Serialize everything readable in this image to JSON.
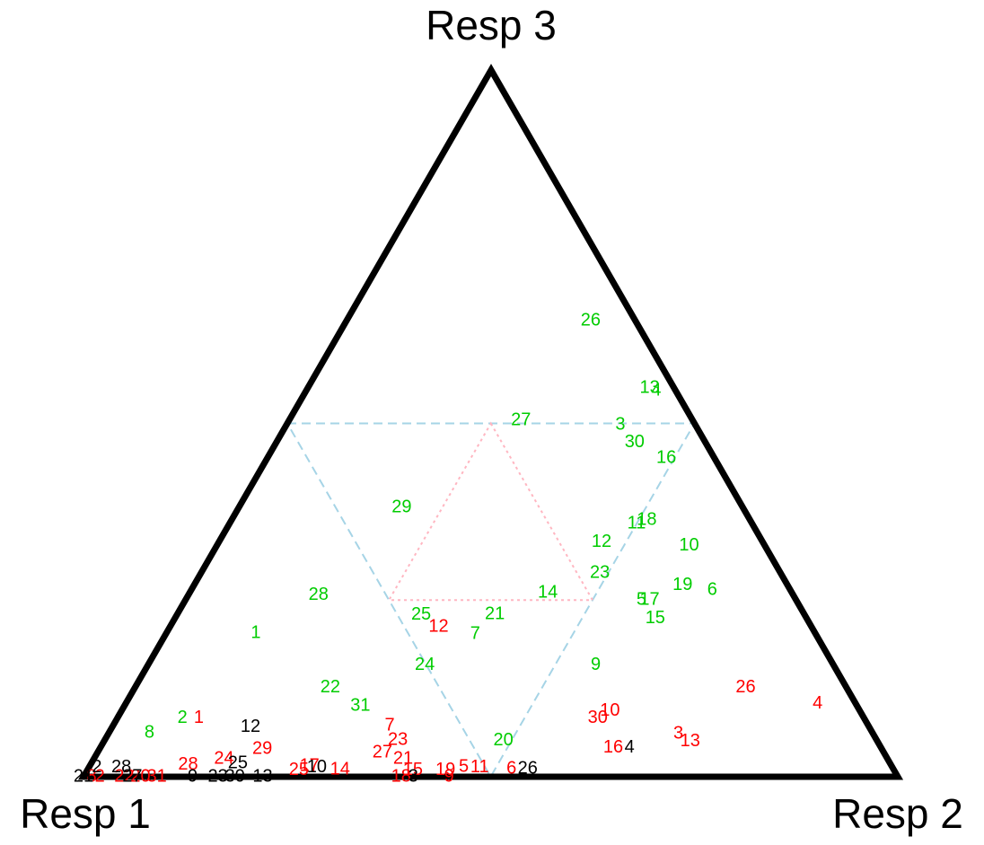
{
  "chart_data": {
    "type": "ternary",
    "axis_labels": [
      "Resp 1",
      "Resp 2",
      "Resp 3"
    ],
    "series": [
      {
        "color": "#00cc00",
        "labels": [
          26,
          13,
          4,
          27,
          3,
          30,
          16,
          29,
          11,
          18,
          12,
          10,
          23,
          19,
          6,
          14,
          5,
          17,
          28,
          15,
          25,
          21,
          1,
          7,
          24,
          9,
          22,
          31,
          2,
          8,
          20
        ],
        "resp2": [
          0.3,
          0.42,
          0.43,
          0.285,
          0.41,
          0.44,
          0.49,
          0.2,
          0.5,
          0.51,
          0.47,
          0.58,
          0.49,
          0.6,
          0.64,
          0.44,
          0.56,
          0.57,
          0.16,
          0.59,
          0.3,
          0.39,
          0.11,
          0.38,
          0.34,
          0.55,
          0.24,
          0.29,
          0.08,
          0.05,
          0.49
        ],
        "resp3": [
          0.645,
          0.55,
          0.546,
          0.504,
          0.498,
          0.473,
          0.451,
          0.381,
          0.358,
          0.363,
          0.332,
          0.327,
          0.288,
          0.271,
          0.264,
          0.26,
          0.25,
          0.25,
          0.257,
          0.224,
          0.229,
          0.23,
          0.203,
          0.202,
          0.158,
          0.158,
          0.126,
          0.1,
          0.083,
          0.062,
          0.051
        ]
      },
      {
        "color": "#ff0000",
        "labels": [
          12,
          26,
          4,
          1,
          10,
          30,
          7,
          3,
          13,
          23,
          29,
          27,
          16,
          24,
          21,
          28,
          15,
          18,
          19,
          9,
          5,
          11,
          6,
          25,
          17,
          14,
          8,
          2,
          22,
          20,
          31
        ],
        "resp2": [
          0.33,
          0.75,
          0.85,
          0.1,
          0.6,
          0.59,
          0.34,
          0.7,
          0.72,
          0.36,
          0.2,
          0.35,
          0.63,
          0.16,
          0.38,
          0.12,
          0.4,
          0.39,
          0.44,
          0.449,
          0.46,
          0.48,
          0.52,
          0.26,
          0.27,
          0.31,
          0.01,
          0.02,
          0.05,
          0.07,
          0.09
        ],
        "resp3": [
          0.212,
          0.126,
          0.103,
          0.083,
          0.093,
          0.083,
          0.072,
          0.061,
          0.05,
          0.052,
          0.039,
          0.034,
          0.041,
          0.025,
          0.025,
          0.017,
          0.009,
          0,
          0.009,
          0,
          0.014,
          0.013,
          0.011,
          0.009,
          0.015,
          0.01,
          0,
          0,
          0,
          0,
          0
        ]
      },
      {
        "color": "#000000",
        "labels": [
          12,
          25,
          10,
          26,
          4,
          3,
          13,
          30,
          23,
          9,
          28,
          2,
          27,
          21
        ],
        "resp2": [
          0.17,
          0.18,
          0.28,
          0.54,
          0.65,
          0.405,
          0.22,
          0.186,
          0.165,
          0.134,
          0.04,
          0.01,
          0.06,
          0.0
        ],
        "resp3": [
          0.07,
          0.019,
          0.013,
          0.011,
          0.041,
          0,
          0,
          0,
          0,
          0,
          0.013,
          0.013,
          0,
          0
        ]
      }
    ]
  }
}
